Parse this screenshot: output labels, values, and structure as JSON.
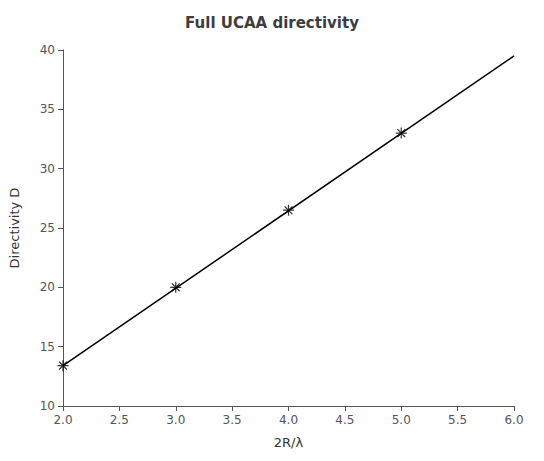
{
  "chart_data": {
    "type": "line",
    "title": "Full UCAA directivity",
    "xlabel": "2R/λ",
    "ylabel": "Directivity D",
    "xlim": [
      2,
      6
    ],
    "ylim": [
      10,
      40
    ],
    "xticks": [
      {
        "value": 2,
        "label": "2.0"
      },
      {
        "value": 2.5,
        "label": "2.5"
      },
      {
        "value": 3,
        "label": "3.0"
      },
      {
        "value": 3.5,
        "label": "3.5"
      },
      {
        "value": 4,
        "label": "4.0"
      },
      {
        "value": 4.5,
        "label": "4.5"
      },
      {
        "value": 5,
        "label": "5.0"
      },
      {
        "value": 5.5,
        "label": "5.5"
      },
      {
        "value": 6,
        "label": "6.0"
      }
    ],
    "yticks": [
      10,
      15,
      20,
      25,
      30,
      35,
      40
    ],
    "grid": false,
    "series": [
      {
        "type": "line",
        "x": [
          2,
          6
        ],
        "values": [
          13.4,
          39.5
        ],
        "color": "#000000",
        "marker": "none"
      },
      {
        "type": "scatter",
        "x": [
          2,
          3,
          4,
          5
        ],
        "values": [
          13.4,
          20.0,
          26.5,
          33.0
        ],
        "color": "#000000",
        "marker": "asterisk"
      }
    ]
  }
}
